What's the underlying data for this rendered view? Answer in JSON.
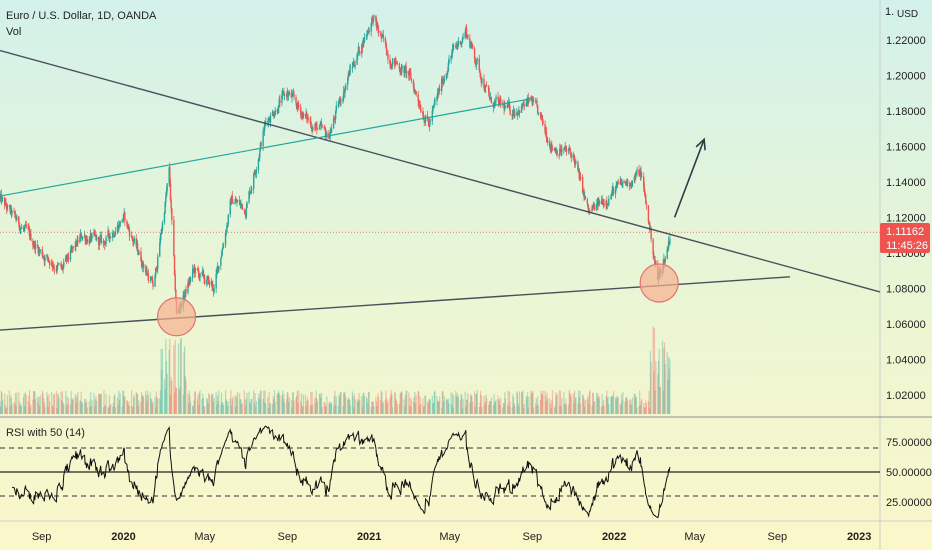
{
  "chart_data": {
    "type": "candlestick",
    "symbol_title": "Euro / U.S. Dollar, 1D, OANDA",
    "volume_label": "Vol",
    "currency": "USD",
    "axis_top_label": "1.",
    "price_ticks": [
      "1.22000",
      "1.20000",
      "1.18000",
      "1.16000",
      "1.14000",
      "1.12000",
      "1.10000",
      "1.08000",
      "1.06000",
      "1.04000",
      "1.02000"
    ],
    "price_ylim": [
      1.0075,
      1.2425
    ],
    "last_price": "1.11162",
    "countdown": "11:45:26",
    "price_anchors": [
      {
        "date": "2019-07-01",
        "price": 1.13
      },
      {
        "date": "2019-08-01",
        "price": 1.115
      },
      {
        "date": "2019-09-01",
        "price": 1.1
      },
      {
        "date": "2019-10-01",
        "price": 1.09
      },
      {
        "date": "2019-11-01",
        "price": 1.11
      },
      {
        "date": "2019-12-01",
        "price": 1.105
      },
      {
        "date": "2020-01-01",
        "price": 1.12
      },
      {
        "date": "2020-02-15",
        "price": 1.08
      },
      {
        "date": "2020-03-09",
        "price": 1.145
      },
      {
        "date": "2020-03-20",
        "price": 1.065
      },
      {
        "date": "2020-04-15",
        "price": 1.09
      },
      {
        "date": "2020-05-15",
        "price": 1.08
      },
      {
        "date": "2020-06-10",
        "price": 1.13
      },
      {
        "date": "2020-07-01",
        "price": 1.125
      },
      {
        "date": "2020-08-01",
        "price": 1.175
      },
      {
        "date": "2020-09-01",
        "price": 1.19
      },
      {
        "date": "2020-10-01",
        "price": 1.175
      },
      {
        "date": "2020-11-01",
        "price": 1.165
      },
      {
        "date": "2020-12-01",
        "price": 1.2
      },
      {
        "date": "2021-01-06",
        "price": 1.232
      },
      {
        "date": "2021-02-01",
        "price": 1.21
      },
      {
        "date": "2021-03-01",
        "price": 1.2
      },
      {
        "date": "2021-03-31",
        "price": 1.172
      },
      {
        "date": "2021-05-01",
        "price": 1.21
      },
      {
        "date": "2021-05-25",
        "price": 1.225
      },
      {
        "date": "2021-07-01",
        "price": 1.185
      },
      {
        "date": "2021-08-01",
        "price": 1.18
      },
      {
        "date": "2021-09-01",
        "price": 1.185
      },
      {
        "date": "2021-10-01",
        "price": 1.16
      },
      {
        "date": "2021-11-01",
        "price": 1.155
      },
      {
        "date": "2021-11-24",
        "price": 1.122
      },
      {
        "date": "2022-01-01",
        "price": 1.135
      },
      {
        "date": "2022-02-10",
        "price": 1.145
      },
      {
        "date": "2022-03-07",
        "price": 1.085
      },
      {
        "date": "2022-03-20",
        "price": 1.1
      },
      {
        "date": "2022-03-25",
        "price": 1.11
      }
    ],
    "x_range": [
      "2019-07-01",
      "2023-02-01"
    ],
    "month_labels": [
      {
        "date": "2019-09-01",
        "label": "Sep",
        "year": false
      },
      {
        "date": "2020-01-01",
        "label": "2020",
        "year": true
      },
      {
        "date": "2020-05-01",
        "label": "May",
        "year": false
      },
      {
        "date": "2020-09-01",
        "label": "Sep",
        "year": false
      },
      {
        "date": "2021-01-01",
        "label": "2021",
        "year": true
      },
      {
        "date": "2021-05-01",
        "label": "May",
        "year": false
      },
      {
        "date": "2021-09-01",
        "label": "Sep",
        "year": false
      },
      {
        "date": "2022-01-01",
        "label": "2022",
        "year": true
      },
      {
        "date": "2022-05-01",
        "label": "May",
        "year": false
      },
      {
        "date": "2022-09-01",
        "label": "Sep",
        "year": false
      },
      {
        "date": "2023-01-01",
        "label": "2023",
        "year": true
      }
    ],
    "rsi": {
      "title": "RSI with 50 (14)",
      "ticks": [
        "75.00000",
        "50.00000",
        "25.00000"
      ],
      "ylim": [
        10,
        95
      ],
      "overbought": 70,
      "midline": 50,
      "oversold": 30
    },
    "drawings": {
      "resistance_line": {
        "from": {
          "date": "2019-07-01",
          "price": 1.214
        },
        "to": {
          "date": "2023-02-01",
          "price": 1.078
        }
      },
      "support_line": {
        "from": {
          "date": "2019-07-01",
          "price": 1.0565
        },
        "to": {
          "date": "2022-09-20",
          "price": 1.0865
        }
      },
      "channel_line": {
        "from": {
          "date": "2019-07-01",
          "price": 1.132
        },
        "to": {
          "date": "2021-09-01",
          "price": 1.187
        }
      },
      "circles": [
        {
          "date": "2020-03-20",
          "price": 1.064
        },
        {
          "date": "2022-03-09",
          "price": 1.083
        }
      ],
      "arrow": {
        "from": {
          "date": "2022-04-01",
          "price": 1.12
        },
        "to": {
          "date": "2022-05-15",
          "price": 1.164
        }
      }
    },
    "colors": {
      "bull": "#26a69a",
      "bear": "#ef5350",
      "trendline": "#4a4f5c",
      "channel": "#22a89a",
      "circle_fill": "#f6b08f",
      "circle_stroke": "#e57373",
      "price_label_bg": "#ef5350",
      "rsi_line": "#111111"
    }
  }
}
